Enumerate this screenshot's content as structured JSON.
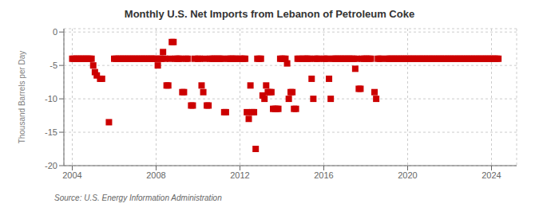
{
  "chart_data": {
    "type": "scatter",
    "title": "Monthly U.S. Net Imports from Lebanon of Petroleum Coke",
    "ylabel": "Thousand Barrels per Day",
    "source": "Source: U.S. Energy Information Administration",
    "color": "#cc0000",
    "marker": "square",
    "grid": true,
    "xlim": [
      2003.6,
      2025.2
    ],
    "xticks": [
      2004,
      2008,
      2012,
      2016,
      2020,
      2024
    ],
    "ylim": [
      -20,
      0.5
    ],
    "yticks": [
      0,
      -5,
      -10,
      -15,
      -20
    ],
    "x": [
      2004.0,
      2004.08,
      2004.17,
      2004.25,
      2004.33,
      2004.42,
      2004.5,
      2004.58,
      2004.67,
      2004.75,
      2004.83,
      2004.92,
      2005.0,
      2005.08,
      2005.17,
      2005.33,
      2005.42,
      2005.75,
      2006.0,
      2006.08,
      2006.17,
      2006.25,
      2006.33,
      2006.42,
      2006.5,
      2006.58,
      2006.67,
      2006.75,
      2006.83,
      2006.92,
      2007.0,
      2007.08,
      2007.17,
      2007.25,
      2007.33,
      2007.42,
      2007.5,
      2007.58,
      2007.67,
      2007.75,
      2007.83,
      2007.92,
      2008.0,
      2008.08,
      2008.17,
      2008.25,
      2008.33,
      2008.42,
      2008.5,
      2008.58,
      2008.67,
      2008.75,
      2008.83,
      2008.92,
      2009.0,
      2009.08,
      2009.17,
      2009.25,
      2009.33,
      2009.42,
      2009.5,
      2009.67,
      2009.75,
      2009.83,
      2010.0,
      2010.08,
      2010.17,
      2010.25,
      2010.33,
      2010.42,
      2010.5,
      2010.58,
      2010.67,
      2010.75,
      2010.83,
      2010.92,
      2011.0,
      2011.08,
      2011.17,
      2011.25,
      2011.33,
      2011.42,
      2011.5,
      2011.58,
      2011.67,
      2011.75,
      2011.83,
      2012.0,
      2012.08,
      2012.17,
      2012.25,
      2012.33,
      2012.42,
      2012.5,
      2012.58,
      2012.67,
      2012.75,
      2012.83,
      2012.92,
      2013.0,
      2013.08,
      2013.17,
      2013.25,
      2013.33,
      2013.42,
      2013.5,
      2013.58,
      2013.67,
      2013.75,
      2013.83,
      2013.92,
      2014.0,
      2014.08,
      2014.17,
      2014.25,
      2014.33,
      2014.42,
      2014.5,
      2014.58,
      2014.67,
      2014.75,
      2014.83,
      2015.0,
      2015.08,
      2015.17,
      2015.25,
      2015.33,
      2015.42,
      2015.5,
      2015.58,
      2015.67,
      2015.75,
      2016.0,
      2016.08,
      2016.17,
      2016.25,
      2016.33,
      2016.42,
      2016.5,
      2016.58,
      2016.67,
      2016.75,
      2016.83,
      2016.92,
      2017.0,
      2017.08,
      2017.17,
      2017.25,
      2017.33,
      2017.42,
      2017.5,
      2017.58,
      2017.67,
      2017.75,
      2017.83,
      2017.92,
      2018.0,
      2018.08,
      2018.17,
      2018.25,
      2018.42,
      2018.5,
      2018.58,
      2018.67,
      2018.75,
      2019.0,
      2019.08,
      2019.17,
      2019.25,
      2019.33,
      2019.42,
      2019.5,
      2019.58,
      2019.67,
      2019.75,
      2019.83,
      2019.92,
      2020.0,
      2020.08,
      2020.17,
      2020.25,
      2020.33,
      2020.42,
      2020.5,
      2020.58,
      2020.67,
      2020.75,
      2020.83,
      2020.92,
      2021.0,
      2021.08,
      2021.17,
      2021.25,
      2021.33,
      2021.42,
      2021.5,
      2021.58,
      2021.67,
      2021.75,
      2021.83,
      2021.92,
      2022.0,
      2022.08,
      2022.17,
      2022.25,
      2022.33,
      2022.42,
      2022.5,
      2022.58,
      2022.67,
      2022.75,
      2022.83,
      2022.92,
      2023.0,
      2023.08,
      2023.17,
      2023.25,
      2023.33,
      2023.42,
      2023.5,
      2023.58,
      2023.67,
      2023.75,
      2023.83,
      2023.92,
      2024.0,
      2024.08,
      2024.17,
      2024.25,
      2024.33
    ],
    "values": [
      -4,
      -4,
      -4,
      -4,
      -4,
      -4,
      -4,
      -4,
      -4,
      -4,
      -4,
      -4,
      -5,
      -6,
      -6.5,
      -7,
      -7,
      -13.5,
      -4,
      -4,
      -4,
      -4,
      -4,
      -4,
      -4,
      -4,
      -4,
      -4,
      -4,
      -4,
      -4,
      -4,
      -4,
      -4,
      -4,
      -4,
      -4,
      -4,
      -4,
      -4,
      -4,
      -4,
      -4,
      -5,
      -4,
      -4,
      -3,
      -4,
      -8,
      -8,
      -4,
      -1.5,
      -1.5,
      -4,
      -4,
      -4,
      -4,
      -9,
      -9,
      -4,
      -4,
      -11,
      -11,
      -4,
      -4,
      -4,
      -8,
      -9,
      -4,
      -11,
      -11,
      -4,
      -4,
      -4,
      -4,
      -4,
      -4,
      -4,
      -4,
      -12,
      -12,
      -4,
      -4,
      -4,
      -4,
      -4,
      -4,
      -4,
      -4,
      -4,
      -4,
      -12,
      -13,
      -8,
      -12,
      -12,
      -17.5,
      -4,
      -4,
      -4,
      -9.5,
      -10,
      -8,
      -9,
      -9,
      -9,
      -11.5,
      -11.5,
      -11.5,
      -11.5,
      -4,
      -4,
      -4,
      -4,
      -4.7,
      -10,
      -9,
      -9,
      -11.5,
      -11.5,
      -4,
      -4,
      -4,
      -4,
      -4,
      -4,
      -4,
      -7,
      -10,
      -4,
      -4,
      -4,
      -4,
      -4,
      -4,
      -7,
      -10,
      -4,
      -4,
      -4,
      -4,
      -4,
      -4,
      -4,
      -4,
      -4,
      -4,
      -4,
      -4,
      -4,
      -5.5,
      -4,
      -8.5,
      -8.5,
      -4,
      -4,
      -4,
      -4,
      -4,
      -4,
      -9,
      -10,
      -4,
      -4,
      -4,
      -4,
      -4,
      -4,
      -4,
      -4,
      -4,
      -4,
      -4,
      -4,
      -4,
      -4,
      -4,
      -4,
      -4,
      -4,
      -4,
      -4,
      -4,
      -4,
      -4,
      -4,
      -4,
      -4,
      -4,
      -4,
      -4,
      -4,
      -4,
      -4,
      -4,
      -4,
      -4,
      -4,
      -4,
      -4,
      -4,
      -4,
      -4,
      -4,
      -4,
      -4,
      -4,
      -4,
      -4,
      -4,
      -4,
      -4,
      -4,
      -4,
      -4,
      -4,
      -4,
      -4,
      -4,
      -4,
      -4,
      -4,
      -4,
      -4,
      -4,
      -4,
      -4,
      -4,
      -4,
      -4
    ]
  }
}
